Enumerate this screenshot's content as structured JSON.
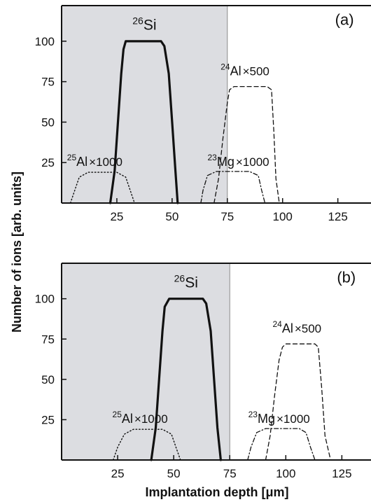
{
  "chart_data": {
    "type": "line",
    "xlabel": "Implantation depth [μm]",
    "ylabel": "Number of ions [arb. units]",
    "grid": false,
    "panels": [
      {
        "label": "(a)",
        "xlim": [
          0,
          140
        ],
        "ylim": [
          0,
          122
        ],
        "xticks": [
          25,
          50,
          75,
          100,
          125
        ],
        "yticks": [
          25,
          50,
          75,
          100
        ],
        "shaded_region": [
          0,
          75
        ],
        "series": [
          {
            "id": "si26",
            "label": {
              "sup": "26",
              "name": "Si",
              "suffix": ""
            },
            "style": "solid",
            "x": [
              22,
              24,
              25.5,
              27,
              28,
              29,
              45,
              46.5,
              48.5,
              50,
              51.5,
              52.5
            ],
            "y": [
              0,
              20,
              50,
              80,
              95,
              100,
              100,
              97,
              80,
              50,
              20,
              0
            ]
          },
          {
            "id": "al24",
            "label": {
              "sup": "24",
              "name": "Al",
              "suffix": "×500"
            },
            "style": "dashed",
            "x": [
              69,
              71,
              73,
              75,
              76,
              78,
              93,
              95,
              96,
              97,
              98.5
            ],
            "y": [
              0,
              15,
              40,
              62,
              70,
              72,
              72,
              70,
              45,
              15,
              0
            ]
          },
          {
            "id": "mg23",
            "label": {
              "sup": "23",
              "name": "Mg",
              "suffix": "×1000"
            },
            "style": "dashdot",
            "x": [
              63,
              64,
              66,
              70,
              85,
              89,
              90.5,
              92
            ],
            "y": [
              0,
              8,
              17,
              19.5,
              19.5,
              17,
              8,
              0
            ]
          },
          {
            "id": "al25",
            "label": {
              "sup": "25",
              "name": "Al",
              "suffix": "×1000"
            },
            "style": "dotted",
            "x": [
              4,
              6,
              8,
              12,
              25,
              29,
              31,
              33
            ],
            "y": [
              0,
              8,
              16,
              19,
              19,
              16,
              8,
              0
            ]
          }
        ]
      },
      {
        "label": "(b)",
        "xlim": [
          0,
          138
        ],
        "ylim": [
          0,
          122
        ],
        "xticks": [
          25,
          50,
          75,
          100,
          125
        ],
        "yticks": [
          25,
          50,
          75,
          100
        ],
        "shaded_region": [
          0,
          75
        ],
        "series": [
          {
            "id": "si26",
            "label": {
              "sup": "26",
              "name": "Si",
              "suffix": ""
            },
            "style": "solid",
            "x": [
              40,
              42,
              43.5,
              45,
              46,
              48,
              63,
              64.5,
              66.5,
              68,
              69.5,
              71
            ],
            "y": [
              0,
              20,
              50,
              80,
              95,
              100,
              100,
              97,
              80,
              50,
              20,
              0
            ]
          },
          {
            "id": "al24",
            "label": {
              "sup": "24",
              "name": "Al",
              "suffix": "×500"
            },
            "style": "dashed",
            "x": [
              91,
              93,
              95,
              97,
              98.5,
              100,
              113,
              114.5,
              116,
              117.5,
              120
            ],
            "y": [
              0,
              15,
              40,
              62,
              70,
              72,
              72,
              70,
              45,
              15,
              0
            ]
          },
          {
            "id": "mg23",
            "label": {
              "sup": "23",
              "name": "Mg",
              "suffix": "×1000"
            },
            "style": "dashdot",
            "x": [
              83,
              84.5,
              87,
              91,
              106,
              109,
              111,
              113
            ],
            "y": [
              0,
              8,
              17,
              19.5,
              19.5,
              17,
              8,
              0
            ]
          },
          {
            "id": "al25",
            "label": {
              "sup": "25",
              "name": "Al",
              "suffix": "×1000"
            },
            "style": "dotted",
            "x": [
              23,
              25,
              28,
              32,
              45,
              49,
              51,
              53
            ],
            "y": [
              0,
              8,
              16,
              19,
              19,
              16,
              8,
              0
            ]
          }
        ]
      }
    ]
  }
}
